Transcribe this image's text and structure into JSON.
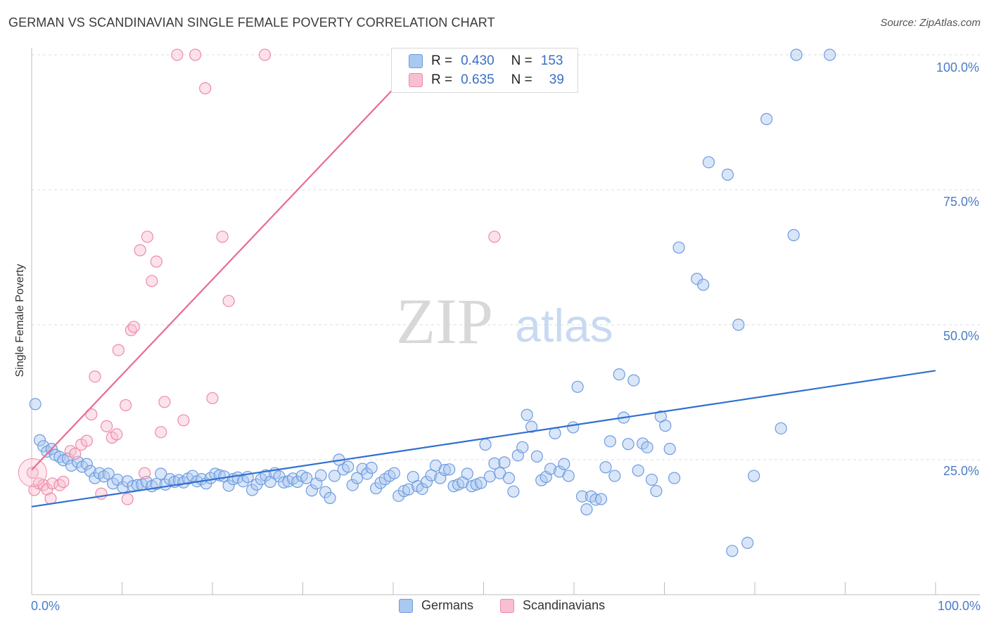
{
  "header": {
    "title": "GERMAN VS SCANDINAVIAN SINGLE FEMALE POVERTY CORRELATION CHART",
    "source": "Source: ZipAtlas.com"
  },
  "watermark": {
    "zip": "ZIP",
    "atlas": "atlas"
  },
  "legend_top": {
    "rows": [
      {
        "r_label": "R =",
        "r_value": "0.430",
        "n_label": "N =",
        "n_value": "153",
        "color": "#aac8f0",
        "border": "#6d9be0"
      },
      {
        "r_label": "R =",
        "r_value": "0.635",
        "n_label": "N =",
        "n_value": "39",
        "color": "#f8bfd0",
        "border": "#ee8aa9"
      }
    ]
  },
  "chart_data": {
    "type": "scatter",
    "title": "GERMAN VS SCANDINAVIAN SINGLE FEMALE POVERTY CORRELATION CHART",
    "xlabel": "",
    "ylabel": "Single Female Poverty",
    "xlim": [
      0,
      100
    ],
    "ylim": [
      0,
      100
    ],
    "x_tick_labels": [
      "0.0%",
      "100.0%"
    ],
    "y_tick_labels": [
      "100.0%",
      "75.0%",
      "50.0%",
      "25.0%"
    ],
    "y_ticks": [
      100,
      75,
      50,
      25
    ],
    "grid": true,
    "legend_position": "bottom-center",
    "series": [
      {
        "name": "Germans",
        "color": "#7fa8e6",
        "line_color": "#2e6fd0",
        "trend": {
          "x": [
            0,
            100
          ],
          "y": [
            16.3,
            41.5
          ]
        },
        "points": [
          [
            0.4,
            35.3
          ],
          [
            0.9,
            28.6
          ],
          [
            1.3,
            27.5
          ],
          [
            1.7,
            26.5
          ],
          [
            2.2,
            27
          ],
          [
            2.6,
            25.9
          ],
          [
            3.1,
            25.5
          ],
          [
            3.5,
            24.9
          ],
          [
            4.0,
            25.2
          ],
          [
            4.4,
            23.9
          ],
          [
            5.1,
            24.6
          ],
          [
            5.6,
            23.7
          ],
          [
            6.1,
            24.2
          ],
          [
            6.5,
            22.9
          ],
          [
            7.0,
            21.6
          ],
          [
            7.5,
            22.5
          ],
          [
            8.0,
            21.9
          ],
          [
            8.5,
            22.4
          ],
          [
            9.0,
            20.6
          ],
          [
            9.5,
            21.3
          ],
          [
            10.1,
            19.9
          ],
          [
            10.6,
            21.0
          ],
          [
            11.2,
            20.1
          ],
          [
            11.7,
            20.3
          ],
          [
            12.2,
            20.4
          ],
          [
            12.7,
            20.9
          ],
          [
            13.3,
            20.1
          ],
          [
            13.8,
            20.5
          ],
          [
            14.3,
            22.4
          ],
          [
            14.8,
            20.4
          ],
          [
            15.3,
            21.4
          ],
          [
            15.8,
            20.9
          ],
          [
            16.3,
            21.2
          ],
          [
            16.8,
            20.8
          ],
          [
            17.3,
            21.5
          ],
          [
            17.8,
            22.0
          ],
          [
            18.3,
            21.0
          ],
          [
            18.8,
            21.4
          ],
          [
            19.3,
            20.6
          ],
          [
            19.8,
            21.6
          ],
          [
            20.3,
            22.4
          ],
          [
            20.8,
            22.1
          ],
          [
            21.3,
            21.9
          ],
          [
            21.8,
            20.2
          ],
          [
            22.3,
            21.4
          ],
          [
            22.8,
            21.7
          ],
          [
            23.4,
            21.0
          ],
          [
            23.9,
            21.8
          ],
          [
            24.4,
            19.4
          ],
          [
            24.9,
            20.4
          ],
          [
            25.4,
            21.4
          ],
          [
            25.9,
            22.1
          ],
          [
            26.4,
            20.9
          ],
          [
            26.9,
            22.5
          ],
          [
            27.4,
            21.9
          ],
          [
            27.9,
            20.8
          ],
          [
            28.4,
            21.0
          ],
          [
            28.9,
            21.5
          ],
          [
            29.4,
            20.9
          ],
          [
            29.9,
            22.0
          ],
          [
            30.4,
            21.6
          ],
          [
            31.0,
            19.3
          ],
          [
            31.5,
            20.6
          ],
          [
            32.0,
            22.1
          ],
          [
            32.5,
            19.0
          ],
          [
            33.0,
            17.9
          ],
          [
            33.5,
            22.0
          ],
          [
            34.0,
            25.0
          ],
          [
            34.5,
            23.2
          ],
          [
            35.0,
            23.7
          ],
          [
            35.5,
            20.3
          ],
          [
            36.0,
            21.6
          ],
          [
            36.6,
            23.3
          ],
          [
            37.1,
            22.4
          ],
          [
            37.6,
            23.5
          ],
          [
            38.1,
            19.7
          ],
          [
            38.6,
            20.7
          ],
          [
            39.1,
            21.4
          ],
          [
            39.6,
            22.0
          ],
          [
            40.1,
            22.5
          ],
          [
            40.6,
            18.3
          ],
          [
            41.2,
            19.2
          ],
          [
            41.7,
            19.5
          ],
          [
            42.2,
            21.8
          ],
          [
            42.7,
            20.1
          ],
          [
            43.2,
            19.6
          ],
          [
            43.7,
            20.9
          ],
          [
            44.2,
            22.1
          ],
          [
            44.7,
            23.9
          ],
          [
            45.2,
            21.6
          ],
          [
            45.7,
            23.1
          ],
          [
            46.2,
            23.2
          ],
          [
            46.7,
            20.1
          ],
          [
            47.2,
            20.4
          ],
          [
            47.7,
            20.8
          ],
          [
            48.2,
            22.4
          ],
          [
            48.7,
            20.1
          ],
          [
            49.2,
            20.4
          ],
          [
            49.7,
            20.7
          ],
          [
            50.2,
            27.8
          ],
          [
            50.7,
            21.9
          ],
          [
            51.2,
            24.3
          ],
          [
            51.8,
            22.5
          ],
          [
            52.3,
            24.5
          ],
          [
            52.8,
            21.6
          ],
          [
            53.3,
            19.1
          ],
          [
            53.8,
            25.8
          ],
          [
            54.3,
            27.3
          ],
          [
            54.8,
            33.3
          ],
          [
            55.3,
            31.1
          ],
          [
            55.9,
            25.6
          ],
          [
            56.4,
            21.2
          ],
          [
            56.9,
            21.8
          ],
          [
            57.4,
            23.3
          ],
          [
            57.9,
            29.9
          ],
          [
            58.4,
            22.8
          ],
          [
            58.9,
            24.2
          ],
          [
            59.4,
            22.0
          ],
          [
            59.9,
            31.0
          ],
          [
            60.4,
            38.5
          ],
          [
            60.9,
            18.2
          ],
          [
            61.4,
            15.8
          ],
          [
            61.9,
            18.2
          ],
          [
            62.4,
            17.6
          ],
          [
            63.0,
            17.7
          ],
          [
            63.5,
            23.6
          ],
          [
            64.0,
            28.4
          ],
          [
            64.5,
            22.0
          ],
          [
            65.0,
            40.8
          ],
          [
            65.5,
            32.8
          ],
          [
            66.0,
            27.9
          ],
          [
            66.6,
            39.7
          ],
          [
            67.1,
            23.0
          ],
          [
            67.6,
            28.0
          ],
          [
            68.1,
            27.3
          ],
          [
            68.6,
            21.3
          ],
          [
            69.1,
            19.2
          ],
          [
            69.6,
            33.0
          ],
          [
            70.1,
            31.3
          ],
          [
            70.6,
            27.0
          ],
          [
            71.1,
            21.6
          ],
          [
            71.6,
            64.3
          ],
          [
            73.6,
            58.5
          ],
          [
            74.3,
            57.4
          ],
          [
            74.9,
            80.1
          ],
          [
            77.0,
            77.8
          ],
          [
            77.5,
            8.1
          ],
          [
            78.2,
            50.0
          ],
          [
            79.2,
            9.6
          ],
          [
            79.9,
            22.0
          ],
          [
            81.3,
            88.1
          ],
          [
            82.9,
            30.8
          ],
          [
            84.6,
            100
          ],
          [
            84.3,
            66.6
          ],
          [
            88.3,
            100
          ]
        ]
      },
      {
        "name": "Scandinavians",
        "color": "#f4a7bf",
        "line_color": "#ea6b93",
        "trend": {
          "x": [
            0,
            43.6
          ],
          "y": [
            23.1,
            100
          ]
        },
        "points": [
          [
            0.1,
            22.6
          ],
          [
            0.3,
            19.4
          ],
          [
            0.8,
            20.6
          ],
          [
            1.3,
            20.3
          ],
          [
            1.7,
            19.5
          ],
          [
            2.1,
            17.8
          ],
          [
            2.3,
            20.6
          ],
          [
            3.1,
            20.3
          ],
          [
            3.5,
            20.9
          ],
          [
            4.3,
            26.6
          ],
          [
            4.8,
            26.1
          ],
          [
            5.5,
            27.8
          ],
          [
            6.1,
            28.5
          ],
          [
            6.6,
            33.4
          ],
          [
            7.0,
            40.4
          ],
          [
            7.7,
            18.7
          ],
          [
            8.3,
            31.2
          ],
          [
            8.9,
            29.1
          ],
          [
            9.4,
            29.7
          ],
          [
            9.6,
            45.3
          ],
          [
            10.4,
            35.1
          ],
          [
            10.6,
            17.7
          ],
          [
            11.0,
            49.0
          ],
          [
            11.3,
            49.6
          ],
          [
            12.0,
            63.8
          ],
          [
            12.5,
            22.5
          ],
          [
            12.8,
            66.3
          ],
          [
            13.3,
            58.1
          ],
          [
            13.8,
            61.7
          ],
          [
            14.3,
            30.1
          ],
          [
            14.7,
            35.7
          ],
          [
            16.1,
            100
          ],
          [
            16.8,
            32.3
          ],
          [
            18.1,
            100
          ],
          [
            19.2,
            93.8
          ],
          [
            20.0,
            36.4
          ],
          [
            21.1,
            66.3
          ],
          [
            21.8,
            54.4
          ],
          [
            25.8,
            100
          ],
          [
            51.2,
            66.3
          ]
        ]
      }
    ]
  },
  "legend_bottom": {
    "items": [
      {
        "label": "Germans",
        "color": "#aac8f0",
        "border": "#6d9be0"
      },
      {
        "label": "Scandinavians",
        "color": "#f8bfd0",
        "border": "#ee8aa9"
      }
    ]
  }
}
